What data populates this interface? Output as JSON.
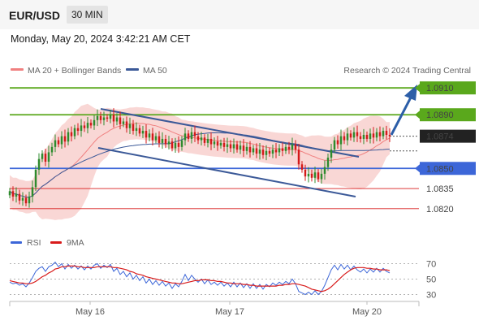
{
  "header": {
    "symbol": "EUR/USD",
    "timeframe": "30 MIN",
    "datetime": "Monday, May 20, 2024 3:42:21 AM CET"
  },
  "legend": {
    "ma20_label": "MA 20 + Bollinger Bands",
    "ma50_label": "MA 50",
    "source": "Research © 2024 Trading Central",
    "rsi_label": "RSI",
    "rsi_ma_label": "9MA"
  },
  "colors": {
    "bull": "#2e8b2e",
    "bear": "#d41a1a",
    "bollinger": "#f7c9c7",
    "ma20": "#f08080",
    "ma50": "#3b5998",
    "resistance": "#5aa81c",
    "pivot": "#3c66d8",
    "support": "#d81b1b",
    "arrow": "#2c5ea8",
    "last": "#222222"
  },
  "chart_data": {
    "type": "candlestick",
    "x_labels": [
      "May 16",
      "May 17",
      "May 20"
    ],
    "ylim": [
      1.0812,
      1.0918
    ],
    "levels": [
      {
        "name": "resistance",
        "label": "1.0910",
        "value": 1.091
      },
      {
        "name": "resistance",
        "label": "1.0890",
        "value": 1.089
      },
      {
        "name": "last",
        "label": "1.0874",
        "value": 1.0874
      },
      {
        "name": "pivot",
        "label": "1.0850",
        "value": 1.085
      },
      {
        "name": "support",
        "label": "1.0835",
        "value": 1.0835
      },
      {
        "name": "support",
        "label": "1.0820",
        "value": 1.082
      }
    ],
    "closes": [
      1.0833,
      1.0829,
      1.0831,
      1.0826,
      1.0828,
      1.0824,
      1.0829,
      1.0836,
      1.0849,
      1.0857,
      1.0861,
      1.0855,
      1.0862,
      1.0866,
      1.0871,
      1.0868,
      1.0874,
      1.087,
      1.0877,
      1.0874,
      1.088,
      1.0878,
      1.0882,
      1.088,
      1.0884,
      1.0882,
      1.0886,
      1.0889,
      1.0886,
      1.0888,
      1.0887,
      1.089,
      1.0885,
      1.0888,
      1.0883,
      1.0885,
      1.088,
      1.0883,
      1.0878,
      1.088,
      1.0876,
      1.0878,
      1.0873,
      1.0876,
      1.0871,
      1.0874,
      1.0869,
      1.0872,
      1.0868,
      1.087,
      1.0865,
      1.0869,
      1.0866,
      1.0871,
      1.0876,
      1.0872,
      1.0877,
      1.0874,
      1.0871,
      1.0873,
      1.0869,
      1.0872,
      1.0868,
      1.087,
      1.0867,
      1.0869,
      1.0866,
      1.0868,
      1.0865,
      1.0868,
      1.0864,
      1.0867,
      1.0863,
      1.0866,
      1.0862,
      1.0865,
      1.0861,
      1.0864,
      1.086,
      1.0863,
      1.0861,
      1.0864,
      1.0862,
      1.0865,
      1.0863,
      1.0866,
      1.0864,
      1.0868,
      1.0864,
      1.0853,
      1.0849,
      1.0844,
      1.0846,
      1.0843,
      1.0847,
      1.0842,
      1.0846,
      1.0851,
      1.0858,
      1.0864,
      1.0871,
      1.0868,
      1.0874,
      1.0871,
      1.0876,
      1.0873,
      1.0877,
      1.0874,
      1.0872,
      1.0875,
      1.0872,
      1.0876,
      1.0873,
      1.0877,
      1.0874,
      1.0878,
      1.0875,
      1.0874
    ],
    "rsi": {
      "ticks": [
        70,
        50,
        30
      ],
      "ylim": [
        20,
        80
      ],
      "rsi_values": [
        46,
        44,
        45,
        42,
        44,
        40,
        45,
        52,
        60,
        64,
        66,
        60,
        66,
        68,
        72,
        66,
        70,
        63,
        69,
        64,
        68,
        63,
        67,
        62,
        67,
        63,
        68,
        70,
        64,
        68,
        65,
        69,
        60,
        64,
        56,
        60,
        53,
        58,
        50,
        55,
        48,
        53,
        45,
        50,
        43,
        48,
        42,
        47,
        41,
        45,
        38,
        44,
        40,
        47,
        56,
        48,
        55,
        50,
        46,
        50,
        44,
        49,
        43,
        46,
        42,
        46,
        41,
        45,
        40,
        46,
        40,
        45,
        39,
        44,
        38,
        44,
        38,
        43,
        37,
        43,
        40,
        45,
        42,
        46,
        43,
        47,
        44,
        50,
        44,
        34,
        32,
        30,
        33,
        30,
        35,
        30,
        34,
        42,
        52,
        62,
        68,
        62,
        69,
        63,
        68,
        62,
        67,
        62,
        59,
        63,
        58,
        63,
        59,
        64,
        59,
        64,
        60,
        58
      ],
      "ma_values": [
        48,
        47,
        46,
        45,
        45,
        44,
        44,
        45,
        47,
        50,
        53,
        55,
        58,
        60,
        63,
        64,
        66,
        66,
        67,
        67,
        67,
        66,
        66,
        65,
        65,
        65,
        65,
        66,
        66,
        66,
        66,
        66,
        65,
        65,
        64,
        63,
        62,
        60,
        59,
        57,
        56,
        55,
        53,
        52,
        51,
        50,
        49,
        48,
        47,
        46,
        45,
        45,
        44,
        44,
        45,
        46,
        47,
        48,
        48,
        49,
        49,
        49,
        48,
        48,
        47,
        47,
        46,
        45,
        45,
        44,
        44,
        44,
        43,
        43,
        42,
        42,
        41,
        41,
        41,
        41,
        41,
        41,
        41,
        42,
        42,
        43,
        43,
        44,
        44,
        43,
        42,
        41,
        39,
        37,
        36,
        35,
        34,
        35,
        37,
        40,
        44,
        48,
        52,
        56,
        59,
        62,
        64,
        65,
        65,
        65,
        64,
        64,
        63,
        63,
        62,
        62,
        62,
        61
      ]
    }
  }
}
